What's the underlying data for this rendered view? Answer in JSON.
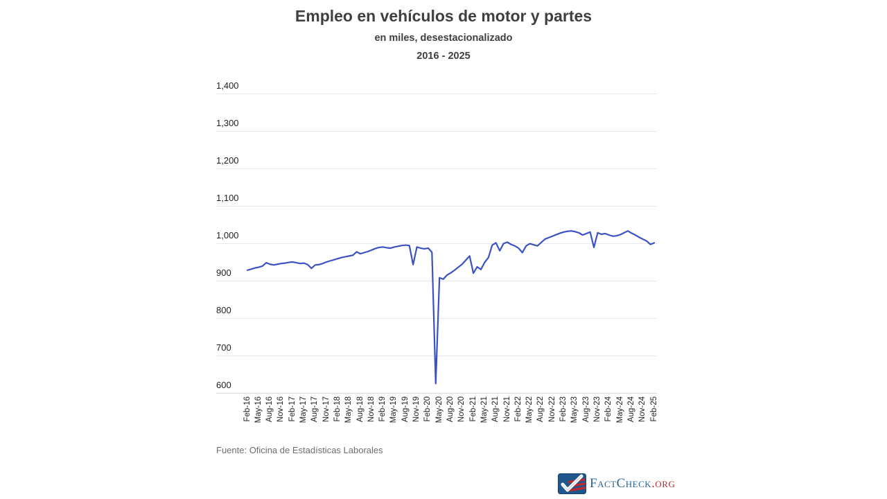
{
  "header": {
    "title": "Empleo en vehículos de motor y partes",
    "subtitle": "en miles, desestacionalizado",
    "period": "2016 - 2025"
  },
  "footer": {
    "source": "Fuente: Oficina de Estadísticas Laborales"
  },
  "logo": {
    "brand": "FactCheck",
    "suffix": ".org",
    "box_color": "#1f568c",
    "brand_color": "#2a6496",
    "suffix_color": "#c2272d"
  },
  "chart_data": {
    "type": "line",
    "title": "Empleo en vehículos de motor y partes",
    "subtitle": "en miles, desestacionalizado",
    "period": "2016 - 2025",
    "ylabel": "",
    "xlabel": "",
    "ylim": [
      600,
      1400
    ],
    "y_ticks": [
      600,
      700,
      800,
      900,
      1000,
      1100,
      1200,
      1300,
      1400
    ],
    "y_tick_labels": [
      "600",
      "700",
      "800",
      "900",
      "1,000",
      "1,100",
      "1,200",
      "1,300",
      "1,400"
    ],
    "grid": "horizontal",
    "legend": "none",
    "line_color": "#3b51c4",
    "frequency": "monthly",
    "x_start": "Feb-16",
    "x_end": "Feb-25",
    "x_tick_every_months": 3,
    "x_tick_labels": [
      "Feb-16",
      "May-16",
      "Aug-16",
      "Nov-16",
      "Feb-17",
      "May-17",
      "Aug-17",
      "Nov-17",
      "Feb-18",
      "May-18",
      "Aug-18",
      "Nov-18",
      "Feb-19",
      "May-19",
      "Aug-19",
      "Nov-19",
      "Feb-20",
      "May-20",
      "Aug-20",
      "Nov-20",
      "Feb-21",
      "May-21",
      "Aug-21",
      "Nov-21",
      "Feb-22",
      "May-22",
      "Aug-22",
      "Nov-22",
      "Feb-23",
      "May-23",
      "Aug-23",
      "Nov-23",
      "Feb-24",
      "May-24",
      "Aug-24",
      "Nov-24",
      "Feb-25"
    ],
    "series": [
      {
        "name": "Empleo en vehículos de motor y partes (miles)",
        "values": [
          928,
          931,
          934,
          936,
          939,
          948,
          944,
          942,
          944,
          946,
          947,
          949,
          950,
          948,
          946,
          947,
          943,
          933,
          942,
          943,
          946,
          950,
          953,
          956,
          959,
          962,
          964,
          966,
          968,
          977,
          972,
          975,
          978,
          982,
          986,
          989,
          990,
          988,
          987,
          990,
          992,
          994,
          995,
          994,
          943,
          990,
          987,
          985,
          987,
          976,
          625,
          908,
          904,
          915,
          921,
          928,
          936,
          944,
          955,
          966,
          920,
          937,
          930,
          949,
          962,
          995,
          1001,
          980,
          999,
          1003,
          997,
          993,
          987,
          975,
          993,
          999,
          996,
          993,
          1002,
          1011,
          1015,
          1019,
          1023,
          1027,
          1030,
          1032,
          1033,
          1031,
          1028,
          1022,
          1026,
          1030,
          989,
          1028,
          1024,
          1026,
          1022,
          1019,
          1020,
          1023,
          1028,
          1033,
          1027,
          1022,
          1016,
          1011,
          1006,
          997,
          1001
        ]
      }
    ]
  }
}
